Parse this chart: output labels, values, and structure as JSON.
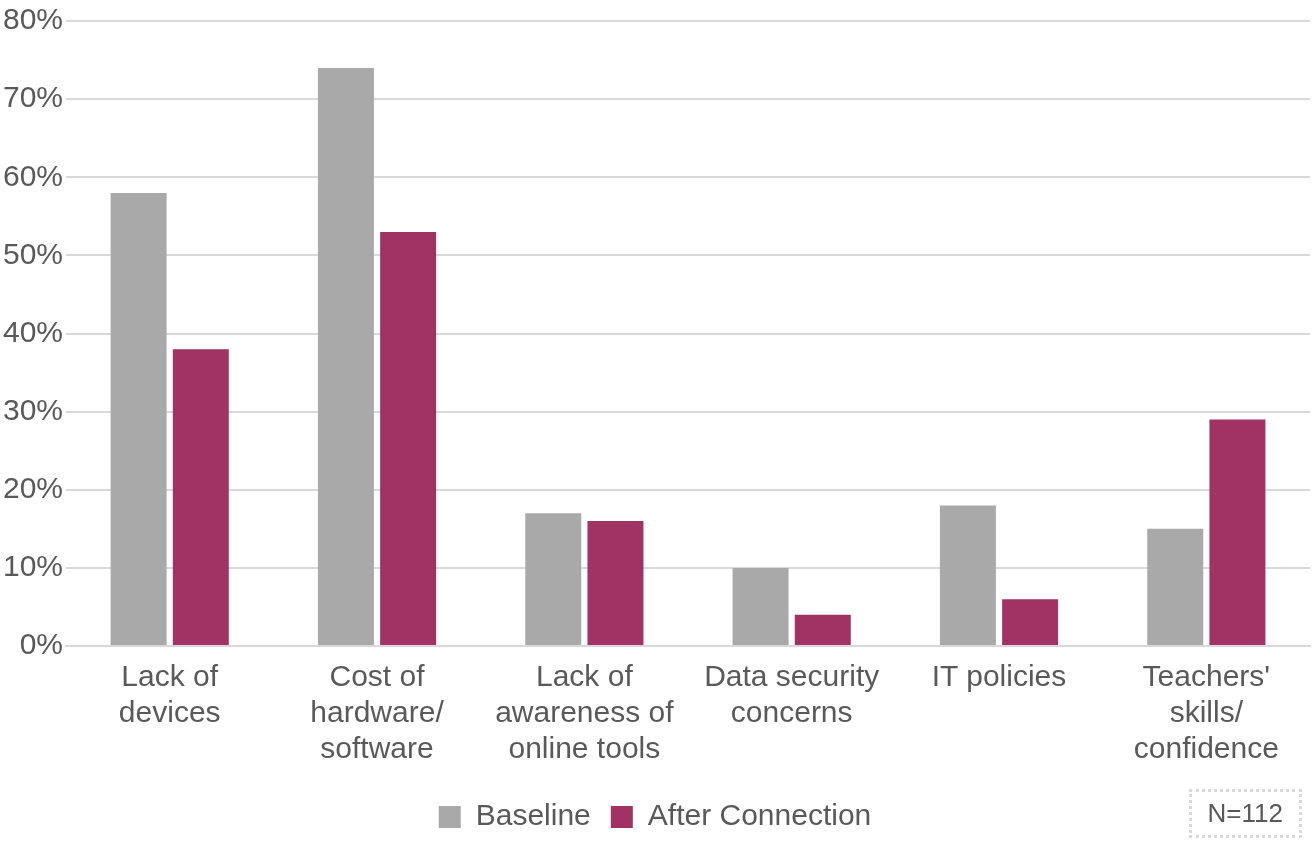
{
  "chart_data": {
    "type": "bar",
    "categories": [
      "Lack of devices",
      "Cost of hardware/ software",
      "Lack of awareness of online tools",
      "Data security concerns",
      "IT policies",
      "Teachers' skills/ confidence"
    ],
    "series": [
      {
        "name": "Baseline",
        "color": "#a9a9a9",
        "values": [
          58,
          74,
          17,
          10,
          18,
          15
        ]
      },
      {
        "name": "After Connection",
        "color": "#a03264",
        "values": [
          38,
          53,
          16,
          4,
          6,
          29
        ]
      }
    ],
    "ylim": [
      0,
      80
    ],
    "yticks": [
      {
        "value": 0,
        "label": "0%"
      },
      {
        "value": 10,
        "label": "10%"
      },
      {
        "value": 20,
        "label": "20%"
      },
      {
        "value": 30,
        "label": "30%"
      },
      {
        "value": 40,
        "label": "40%"
      },
      {
        "value": 50,
        "label": "50%"
      },
      {
        "value": 60,
        "label": "60%"
      },
      {
        "value": 70,
        "label": "70%"
      },
      {
        "value": 80,
        "label": "80%"
      }
    ],
    "grid": "y",
    "legend": "bottom",
    "annotations": [
      "N=112"
    ]
  }
}
